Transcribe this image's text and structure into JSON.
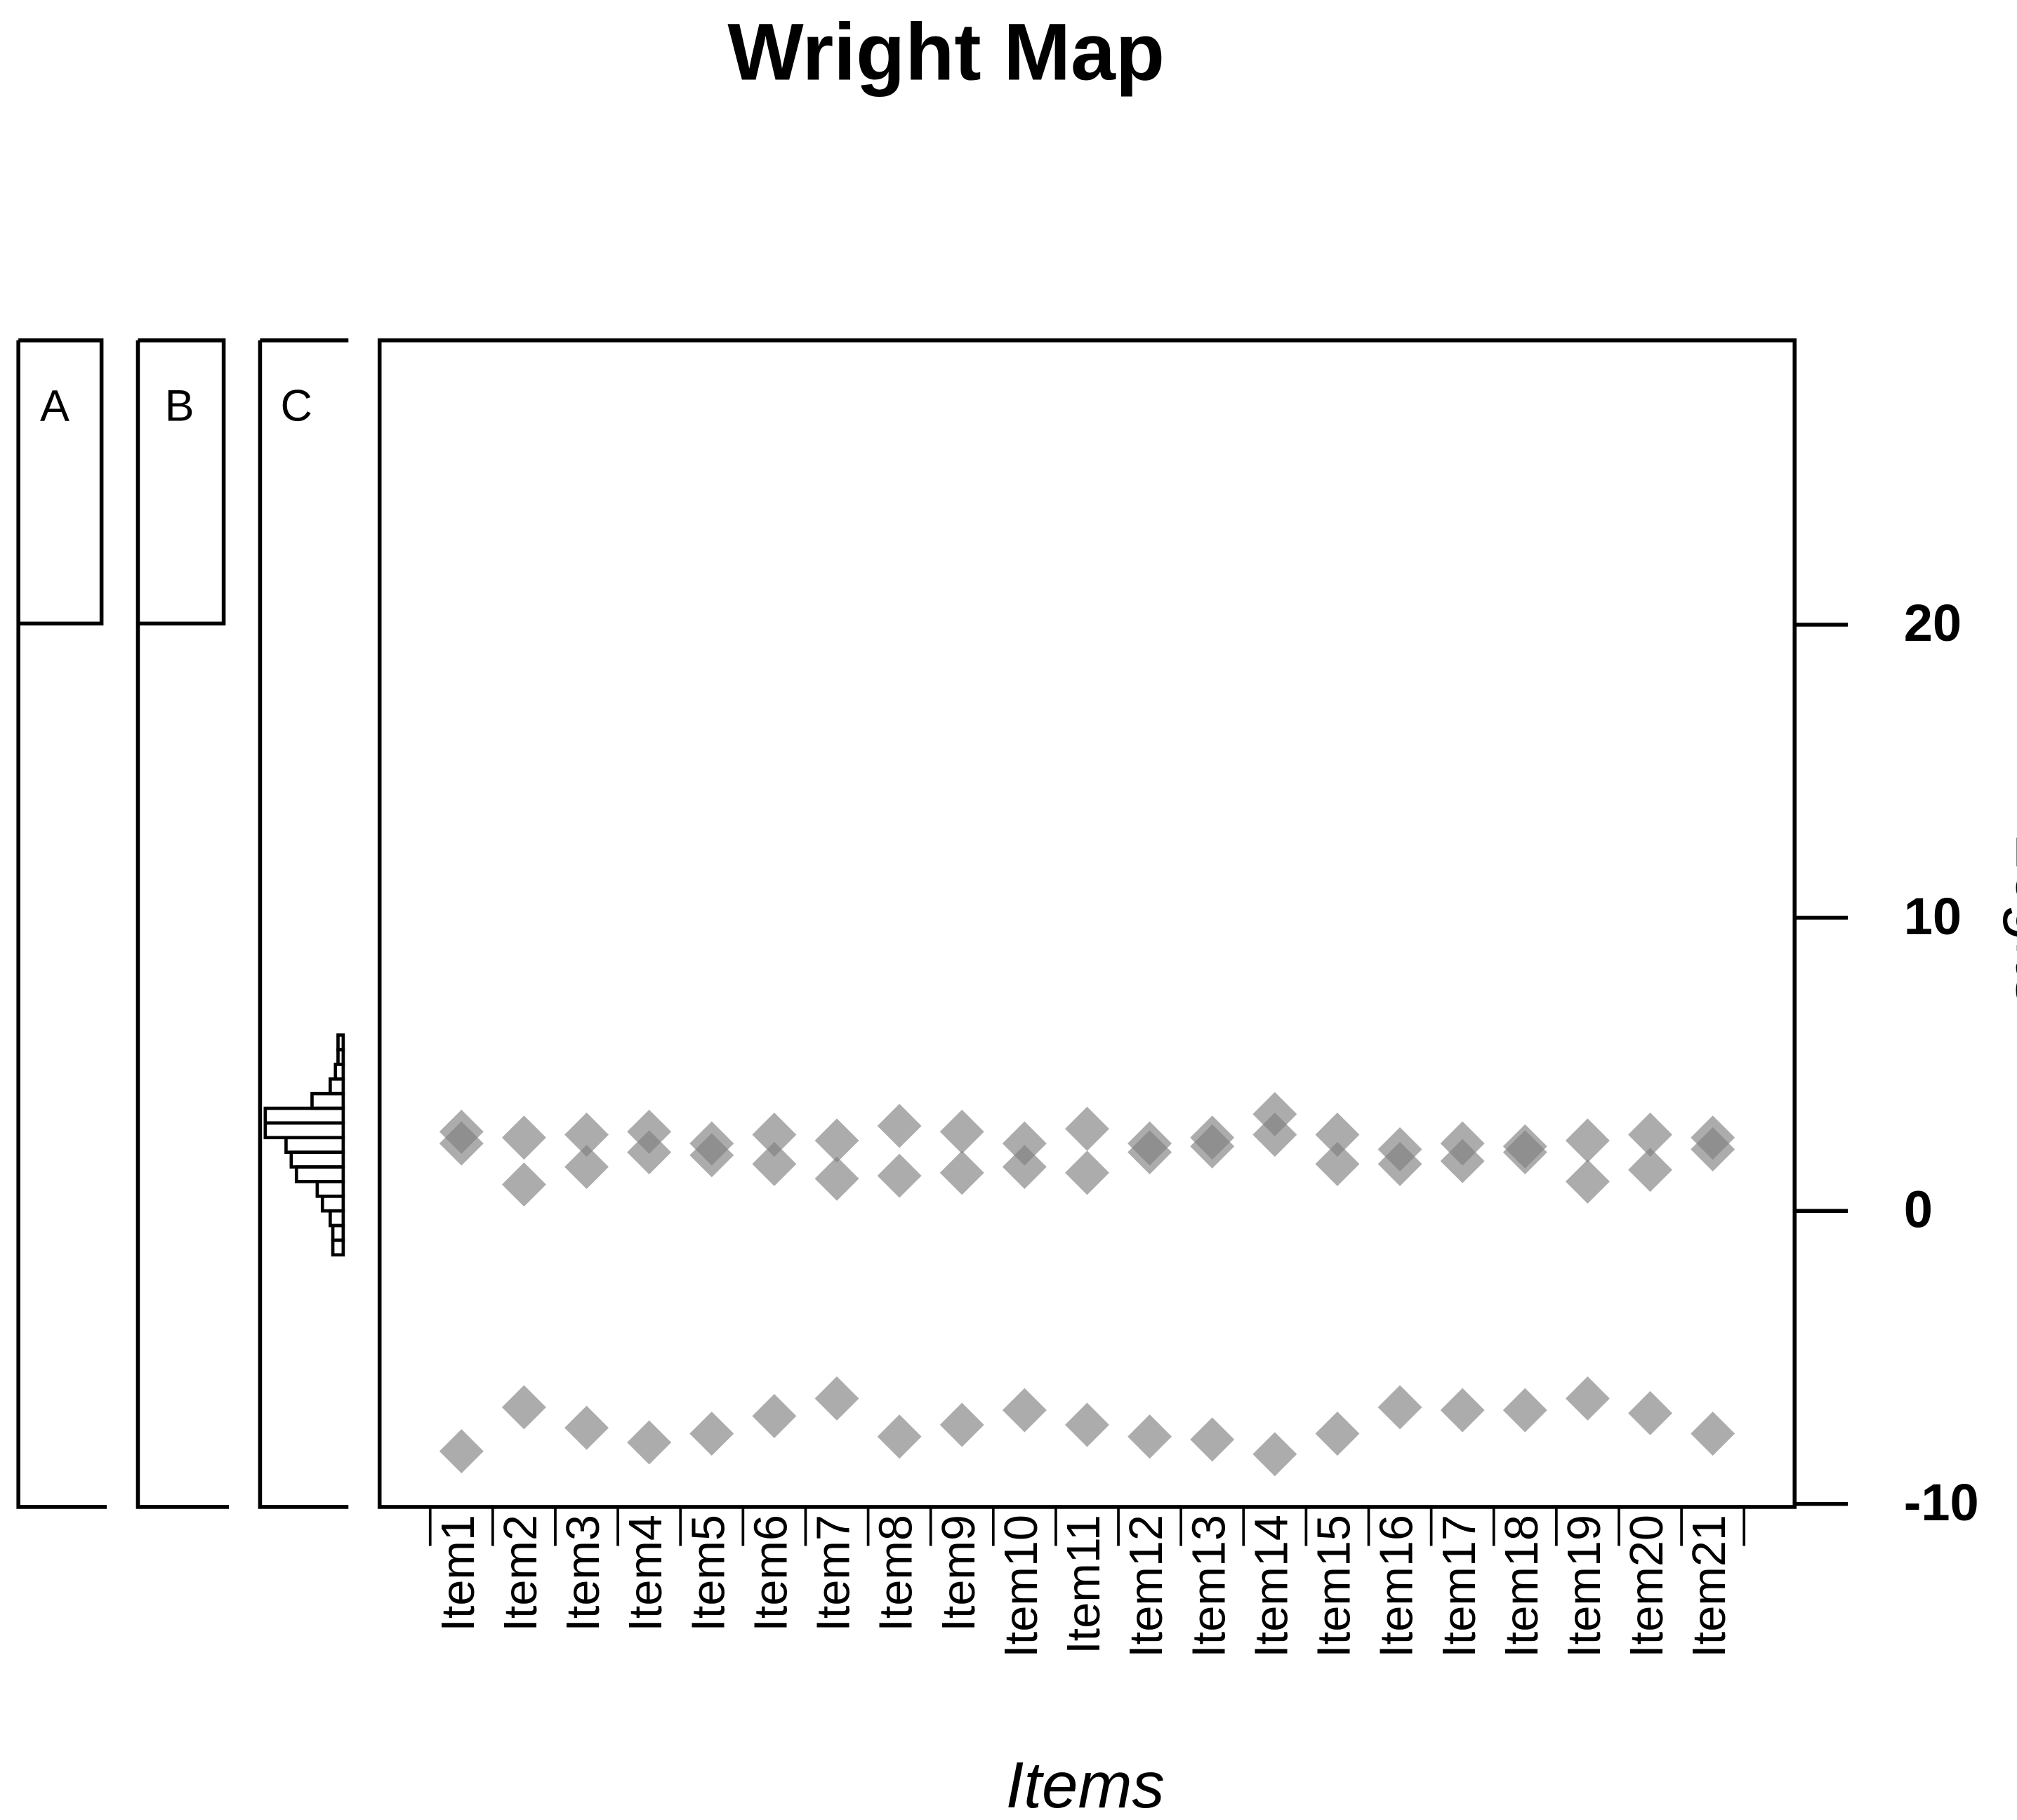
{
  "chart_data": {
    "type": "wright_map",
    "title": "Wright Map",
    "panels": [
      "A",
      "B",
      "C"
    ],
    "person_histogram": {
      "bins": [
        -1.5,
        -1.0,
        -0.5,
        0.0,
        0.5,
        1.0,
        1.5,
        2.0,
        2.5,
        3.0,
        3.5,
        4.0,
        4.5,
        5.0,
        5.5,
        6.0
      ],
      "counts": [
        4,
        4,
        5,
        8,
        10,
        18,
        20,
        22,
        30,
        30,
        12,
        5,
        3,
        2,
        2
      ],
      "xlim": [
        0,
        32
      ]
    },
    "categories": [
      "Item1",
      "Item2",
      "Item3",
      "Item4",
      "Item5",
      "Item6",
      "Item7",
      "Item8",
      "Item9",
      "Item10",
      "Item11",
      "Item12",
      "Item13",
      "Item14",
      "Item15",
      "Item16",
      "Item17",
      "Item18",
      "Item19",
      "Item20",
      "Item21"
    ],
    "series": [
      {
        "color": "#808080",
        "values": [
          2.7,
          2.5,
          2.6,
          2.7,
          2.3,
          2.6,
          2.4,
          2.9,
          2.7,
          2.3,
          2.8,
          2.3,
          2.5,
          3.3,
          2.6,
          2.1,
          2.3,
          2.2,
          2.4,
          2.6,
          2.5
        ]
      },
      {
        "color": "#808080",
        "values": [
          2.3,
          0.9,
          1.5,
          2.0,
          1.9,
          1.6,
          1.1,
          1.2,
          1.3,
          1.5,
          1.3,
          2.0,
          2.2,
          2.6,
          1.6,
          1.6,
          1.7,
          2.0,
          1.0,
          1.4,
          2.1
        ]
      },
      {
        "color": "#808080",
        "values": [
          -8.2,
          -6.7,
          -7.4,
          -7.9,
          -7.6,
          -7.0,
          -6.4,
          -7.7,
          -7.3,
          -6.8,
          -7.3,
          -7.7,
          -7.8,
          -8.3,
          -7.6,
          -6.7,
          -6.8,
          -6.8,
          -6.4,
          -6.9,
          -7.6
        ]
      }
    ],
    "ylim": [
      -10.1,
      29.7
    ],
    "yticks": [
      20,
      10,
      0,
      -10
    ],
    "x_label": "Items",
    "y_label": "Logits"
  }
}
